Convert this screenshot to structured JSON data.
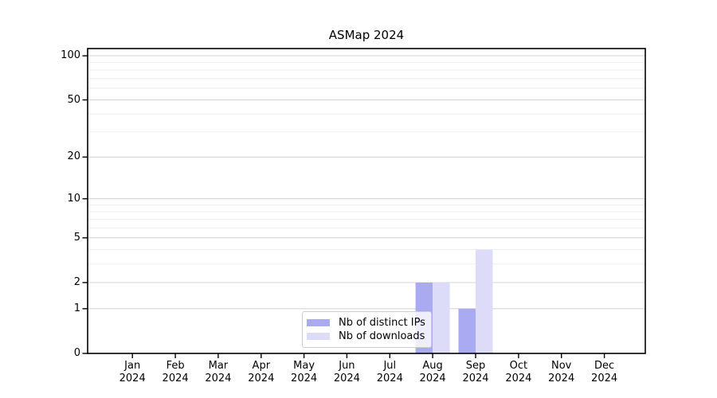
{
  "figure": {
    "background": "#ffffff"
  },
  "chart_data": {
    "type": "bar",
    "title": "ASMap 2024",
    "categories": [
      {
        "month": "Jan",
        "year": "2024"
      },
      {
        "month": "Feb",
        "year": "2024"
      },
      {
        "month": "Mar",
        "year": "2024"
      },
      {
        "month": "Apr",
        "year": "2024"
      },
      {
        "month": "May",
        "year": "2024"
      },
      {
        "month": "Jun",
        "year": "2024"
      },
      {
        "month": "Jul",
        "year": "2024"
      },
      {
        "month": "Aug",
        "year": "2024"
      },
      {
        "month": "Sep",
        "year": "2024"
      },
      {
        "month": "Oct",
        "year": "2024"
      },
      {
        "month": "Nov",
        "year": "2024"
      },
      {
        "month": "Dec",
        "year": "2024"
      }
    ],
    "series": [
      {
        "name": "Nb of distinct IPs",
        "color": "#aaaaf2",
        "values": [
          0,
          0,
          0,
          0,
          0,
          0,
          0,
          2,
          1,
          0,
          0,
          0
        ]
      },
      {
        "name": "Nb of downloads",
        "color": "#dcdcf8",
        "values": [
          0,
          0,
          0,
          0,
          0,
          0,
          0,
          2,
          4,
          0,
          0,
          0
        ]
      }
    ],
    "xlabel": "",
    "ylabel": "",
    "yscale": "log1p",
    "ylim": [
      0,
      112
    ],
    "yticks": [
      0,
      1,
      2,
      5,
      10,
      20,
      50,
      100
    ],
    "yticklabels": [
      "0",
      "1",
      "2",
      "5",
      "10",
      "20",
      "50",
      "100"
    ],
    "minor_gridlines": [
      3,
      4,
      6,
      7,
      8,
      9,
      30,
      40,
      60,
      70,
      80,
      90
    ],
    "grid": true,
    "legend_position": "lower center",
    "colors": {
      "major_grid": "#d6d6d6",
      "minor_grid": "#eeeeee",
      "spine": "#000000",
      "background": "#ffffff"
    }
  }
}
